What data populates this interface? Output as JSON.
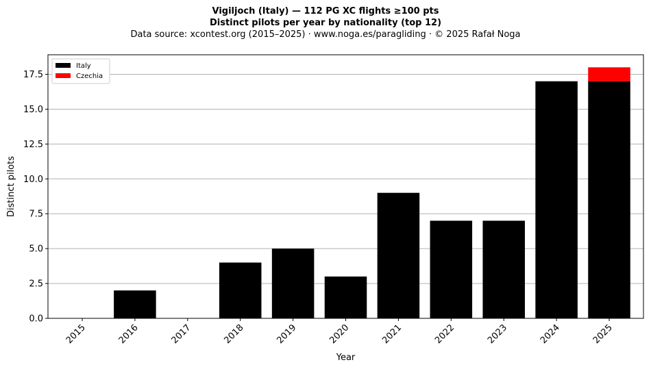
{
  "chart_data": {
    "type": "bar",
    "stacked": true,
    "title": "Vigiljoch (Italy)  —  112 PG XC flights ≥100 pts",
    "subtitle": "Distinct pilots per year by nationality (top 12)",
    "source": "Data source: xcontest.org (2015–2025)  ·  www.noga.es/paragliding  ·  © 2025 Rafał Noga",
    "xlabel": "Year",
    "ylabel": "Distinct pilots",
    "categories": [
      "2015",
      "2016",
      "2017",
      "2018",
      "2019",
      "2020",
      "2021",
      "2022",
      "2023",
      "2024",
      "2025"
    ],
    "series": [
      {
        "name": "Italy",
        "color": "#000000",
        "values": [
          0,
          2,
          0,
          4,
          5,
          3,
          9,
          7,
          7,
          17,
          17
        ]
      },
      {
        "name": "Czechia",
        "color": "#ff0000",
        "values": [
          0,
          0,
          0,
          0,
          0,
          0,
          0,
          0,
          0,
          0,
          1
        ]
      }
    ],
    "ylim": [
      0,
      18.9
    ],
    "yticks": [
      0.0,
      2.5,
      5.0,
      7.5,
      10.0,
      12.5,
      15.0,
      17.5
    ],
    "ytick_labels": [
      "0.0",
      "2.5",
      "5.0",
      "7.5",
      "10.0",
      "12.5",
      "15.0",
      "17.5"
    ],
    "grid": "y",
    "legend_position": "top-left"
  }
}
